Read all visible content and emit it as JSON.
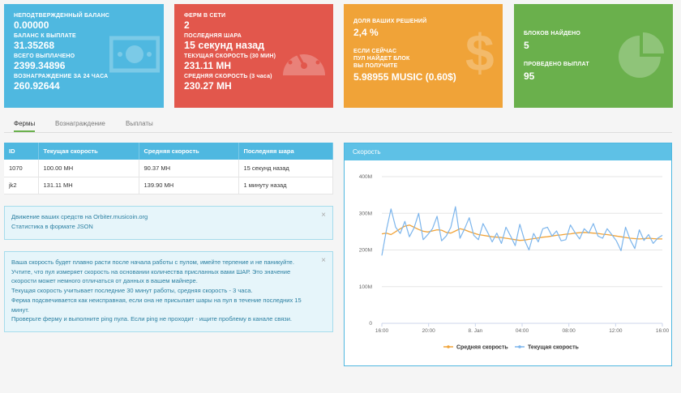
{
  "balance_card": {
    "unconfirmed_label": "НЕПОДТВЕРЖДЕННЫЙ БАЛАНС",
    "unconfirmed_value": "0.00000",
    "payable_label": "БАЛАНС К ВЫПЛАТЕ",
    "payable_value": "31.35268",
    "total_paid_label": "ВСЕГО ВЫПЛАЧЕНО",
    "total_paid_value": "2399.34896",
    "reward24_label": "ВОЗНАГРАЖДЕНИЕ ЗА 24 ЧАСА",
    "reward24_value": "260.92644",
    "icon": "money-icon",
    "color": "#4fb8e0"
  },
  "farms_card": {
    "online_label": "ФЕРМ В СЕТИ",
    "online_value": "2",
    "last_share_label": "ПОСЛЕДНЯЯ ШАРА",
    "last_share_value": "15 секунд назад",
    "current_speed_label": "ТЕКУЩАЯ СКОРОСТЬ (30 МИН)",
    "current_speed_value": "231.11 MH",
    "avg_speed_label": "СРЕДНЯЯ СКОРОСТЬ (3 часа)",
    "avg_speed_value": "230.27 MH",
    "icon": "speedometer-icon",
    "color": "#e2574c"
  },
  "share_card": {
    "share_label": "ДОЛЯ ВАШИХ РЕШЕНИЙ",
    "share_value": "2,4 %",
    "if_now_1": "ЕСЛИ СЕЙЧАС",
    "if_now_2": "ПУЛ НАЙДЕТ БЛОК",
    "if_now_3": "ВЫ ПОЛУЧИТЕ",
    "reward_value": "5.98955 MUSIC (0.60$)",
    "icon": "dollar-icon",
    "color": "#f0a338"
  },
  "blocks_card": {
    "blocks_label": "БЛОКОВ НАЙДЕНО",
    "blocks_value": "5",
    "payouts_label": "ПРОВЕДЕНО ВЫПЛАТ",
    "payouts_value": "95",
    "icon": "pie-chart-icon",
    "color": "#6ab04c"
  },
  "tabs": [
    "Фермы",
    "Вознаграждение",
    "Выплаты"
  ],
  "farms_table": {
    "headers": [
      "ID",
      "Текущая скорость",
      "Средняя скорость",
      "Последняя шара"
    ],
    "rows": [
      [
        "1070",
        "100.00 MH",
        "90.37 MH",
        "15 секунд назад"
      ],
      [
        "jk2",
        "131.11 MH",
        "139.90 MH",
        "1 минуту назад"
      ]
    ]
  },
  "links_alert": {
    "line1": "Движение ваших средств на Orbiter.musicoin.org",
    "line2": "Статистика в формате JSON",
    "close": "×"
  },
  "info_alert": {
    "lines": [
      "Ваша скорость будет плавно расти после начала работы с пулом, имейте терпение и не паникуйте.",
      "Учтите, что пул измеряет скорость на основании количества присланных вами ШАР. Это значение",
      "скорости может немного отличаться от данных в вашем майнере.",
      "Текущая скорость учитывает последние 30 минут работы, средняя скорость - 3 часа.",
      "Ферма подсвечивается как неисправная, если она не присылает шары на пул в течение последних 15",
      "минут.",
      "Проверьте ферму и выполните ping пула. Если ping не проходит - ищите проблему в канале связи."
    ],
    "close": "×"
  },
  "speed_panel": {
    "title": "Скорость"
  },
  "chart_data": {
    "type": "line",
    "x_ticks": [
      "16:00",
      "20:00",
      "8. Jan",
      "04:00",
      "08:00",
      "12:00",
      "16:00"
    ],
    "y_ticks": [
      "0",
      "100M",
      "200M",
      "300M",
      "400M"
    ],
    "ylim": [
      0,
      400
    ],
    "grid": true,
    "legend_position": "bottom",
    "series": [
      {
        "name": "Средняя скорость",
        "color": "#f0a338",
        "values": [
          244,
          246,
          242,
          250,
          258,
          265,
          268,
          262,
          256,
          251,
          249,
          252,
          255,
          254,
          248,
          246,
          252,
          258,
          255,
          250,
          246,
          242,
          240,
          238,
          236,
          235,
          234,
          232,
          230,
          228,
          226,
          227,
          229,
          231,
          233,
          235,
          236,
          238,
          240,
          241,
          243,
          244,
          246,
          247,
          248,
          247,
          246,
          245,
          243,
          242,
          240,
          238,
          236,
          234,
          232,
          231,
          230,
          231,
          232,
          231,
          230,
          230
        ]
      },
      {
        "name": "Текущая скорость",
        "color": "#7cb5ec",
        "values": [
          185,
          255,
          312,
          262,
          245,
          278,
          236,
          260,
          300,
          228,
          242,
          258,
          292,
          225,
          238,
          262,
          318,
          232,
          258,
          288,
          240,
          228,
          272,
          248,
          222,
          246,
          218,
          262,
          238,
          212,
          270,
          228,
          200,
          245,
          222,
          258,
          262,
          238,
          252,
          225,
          228,
          268,
          248,
          230,
          258,
          246,
          272,
          238,
          232,
          258,
          242,
          225,
          198,
          262,
          228,
          204,
          255,
          226,
          242,
          218,
          232,
          240
        ]
      }
    ]
  }
}
